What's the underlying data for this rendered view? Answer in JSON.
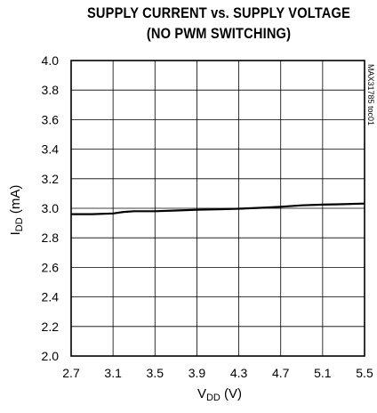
{
  "chart_data": {
    "type": "line",
    "title_line1": "SUPPLY CURRENT vs. SUPPLY VOLTAGE",
    "title_line2": "(NO PWM SWITCHING)",
    "xlabel_main": "V",
    "xlabel_sub": "DD",
    "xlabel_unit": " (V)",
    "ylabel_main": "I",
    "ylabel_sub": "DD",
    "ylabel_unit": " (mA)",
    "side_label": "MAX31785 toc01",
    "xlim": [
      2.7,
      5.5
    ],
    "ylim": [
      2.0,
      4.0
    ],
    "x_ticks": [
      "2.7",
      "3.1",
      "3.5",
      "3.9",
      "4.3",
      "4.7",
      "5.1",
      "5.5"
    ],
    "y_ticks": [
      "2.0",
      "2.2",
      "2.4",
      "2.6",
      "2.8",
      "3.0",
      "3.2",
      "3.4",
      "3.6",
      "3.8",
      "4.0"
    ],
    "grid": true,
    "series": [
      {
        "x": [
          2.7,
          2.9,
          3.1,
          3.2,
          3.3,
          3.5,
          3.7,
          3.9,
          4.1,
          4.3,
          4.5,
          4.7,
          4.9,
          5.1,
          5.3,
          5.5
        ],
        "y": [
          2.96,
          2.96,
          2.965,
          2.975,
          2.98,
          2.98,
          2.985,
          2.99,
          2.993,
          2.997,
          3.003,
          3.01,
          3.02,
          3.025,
          3.028,
          3.032
        ]
      }
    ]
  }
}
